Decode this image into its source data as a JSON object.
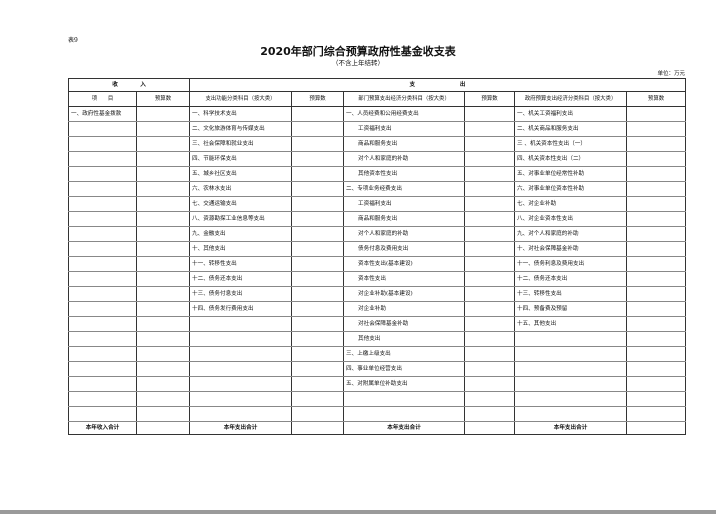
{
  "doc": {
    "tag": "表9",
    "title": "2020年部门综合预算政府性基金收支表",
    "subtitle": "（不含上年结转）",
    "unit": "单位：万元"
  },
  "header": {
    "income": "收　　　　入",
    "expense": "支　　　　　　　　出",
    "cols": [
      "项　　目",
      "预算数",
      "支出功能分类科目（按大类）",
      "预算数",
      "部门预算支出经济分类科目（按大类）",
      "预算数",
      "政府预算支出经济分类科目（按大类）",
      "预算数"
    ]
  },
  "income": [
    "一、政府性基金拨款"
  ],
  "func": [
    "一、科学技术支出",
    "二、文化旅游体育与传媒支出",
    "三、社会保障和就业支出",
    "四、节能环保支出",
    "五、城乡社区支出",
    "六、农林水支出",
    "七、交通运输支出",
    "八、资源勘探工业信息等支出",
    "九、金融支出",
    "十、其他支出",
    "十一、转移性支出",
    "十二、债务还本支出",
    "十三、债务付息支出",
    "十四、债务发行费用支出"
  ],
  "dept": [
    "一、人员经费和公用经费支出",
    "工资福利支出",
    "商品和服务支出",
    "对个人和家庭的补助",
    "其他资本性支出",
    "二、专项业务经费支出",
    "工资福利支出",
    "商品和服务支出",
    "对个人和家庭的补助",
    "债务付息及费用支出",
    "资本性支出(基本建设)",
    "资本性支出",
    "对企业补助(基本建设)",
    "对企业补助",
    "对社会保障基金补助",
    "其他支出",
    "三、上缴上级支出",
    "四、事业单位经营支出",
    "五、对附属单位补助支出"
  ],
  "gov": [
    "一、机关工资福利支出",
    "二、机关商品和服务支出",
    "三 、机关资本性支出（一）",
    "四、机关资本性支出（二）",
    "五、对事业单位经常性补助",
    "六、对事业单位资本性补助",
    "七、对企业补助",
    "八、对企业资本性支出",
    "九、对个人和家庭的补助",
    "十、对社会保障基金补助",
    "十一、债务利息及费用支出",
    "十二、债务还本支出",
    "十三、转移性支出",
    "十四、预备费及预留",
    "十五、其他支出"
  ],
  "totals": {
    "income": "本年收入合计",
    "expense": "本年支出合计"
  }
}
